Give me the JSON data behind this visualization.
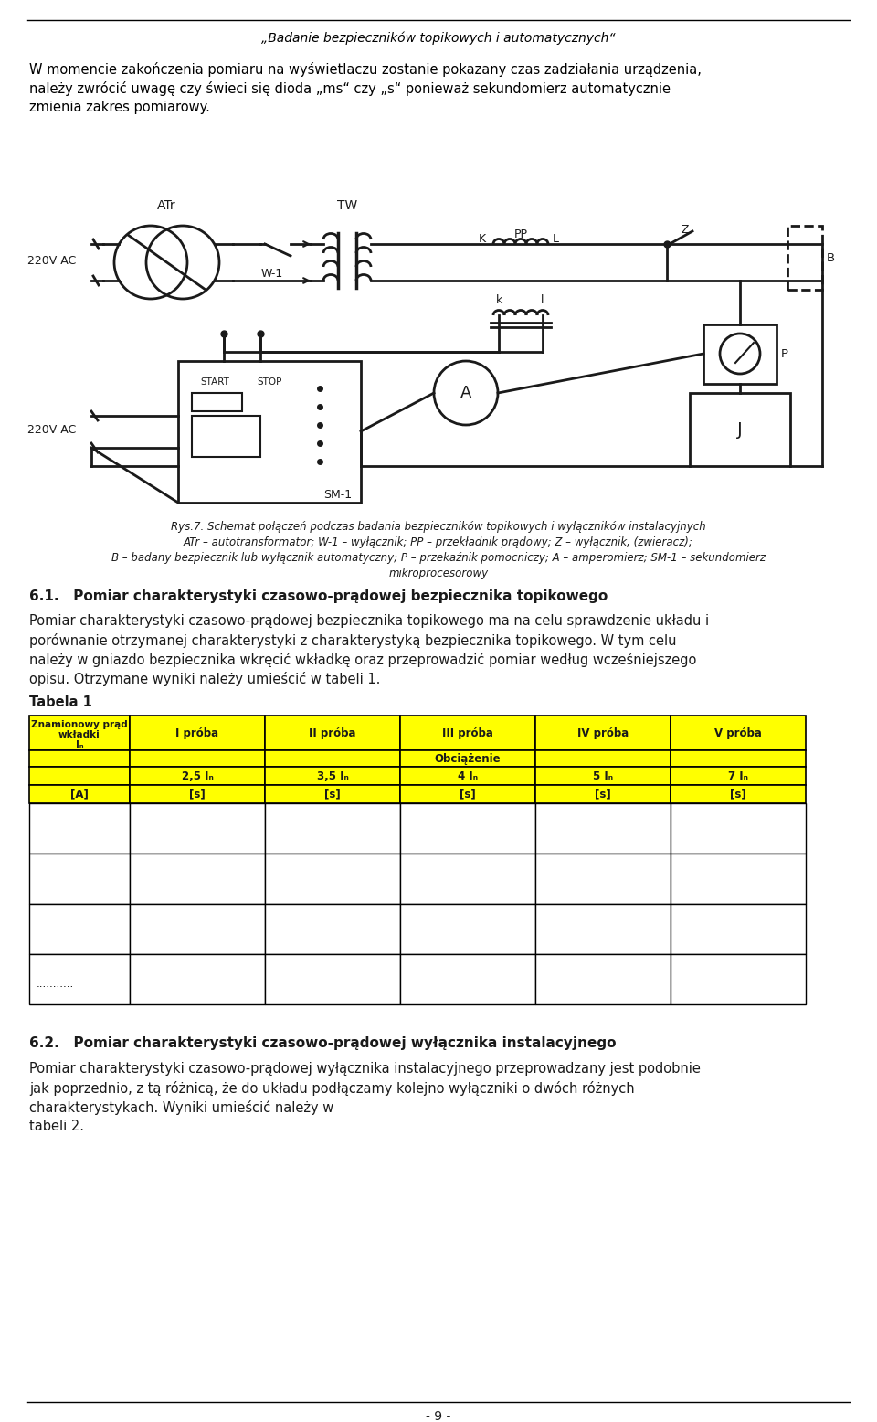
{
  "title": "„Badanie bezpieczników topikowych i automatycznych“",
  "para1_lines": [
    "W momencie zakończenia pomiaru na wyświetlaczu zostanie pokazany czas zadziałania urządzenia,",
    "należy zwrócić uwagę czy świeci się dioda „ms“ czy „s“ ponieważ sekundomierz automatycznie",
    "zmienia zakres pomiarowy."
  ],
  "caption_lines": [
    "Rys.7. Schemat połączeń podczas badania bezpieczników topikowych i wyłączników instalacyjnych",
    "ATr – autotransformator; W-1 – wyłącznik; PP – przekładnik prądowy; Z – wyłącznik, (zwieracz);",
    "B – badany bezpiecznik lub wyłącznik automatyczny; P – przekaźnik pomocniczy; A – amperomierz; SM-1 – sekundomierz",
    "mikroprocesorowy"
  ],
  "section61": "6.1.   Pomiar charakterystyki czasowo-prądowej bezpiecznika topikowego",
  "para61_lines": [
    "Pomiar charakterystyki czasowo-prądowej bezpiecznika topikowego ma na celu sprawdzenie układu i",
    "porównanie otrzymanej charakterystyki z charakterystyką bezpiecznika topikowego. W tym celu",
    "należy w gniazdo bezpiecznika wkręcić wkładkę oraz przeprowadzić pomiar według wcześniejszego",
    "opisu. Otrzymane wyniki należy umieścić w tabeli 1."
  ],
  "tabela1_label": "Tabela 1",
  "section62": "6.2.   Pomiar charakterystyki czasowo-prądowej wyłącznika instalacyjnego",
  "para62_lines": [
    "Pomiar charakterystyki czasowo-prądowej wyłącznika instalacyjnego przeprowadzany jest podobnie",
    "jak poprzednio, z tą różnicą, że do układu podłączamy kolejno wyłączniki o dwóch różnych",
    "charakterystykach. Wyniki umieścić należy w",
    "tabeli 2."
  ],
  "page_num": "- 9 -",
  "bg_color": "#ffffff",
  "table_header_bg": "#ffff00"
}
